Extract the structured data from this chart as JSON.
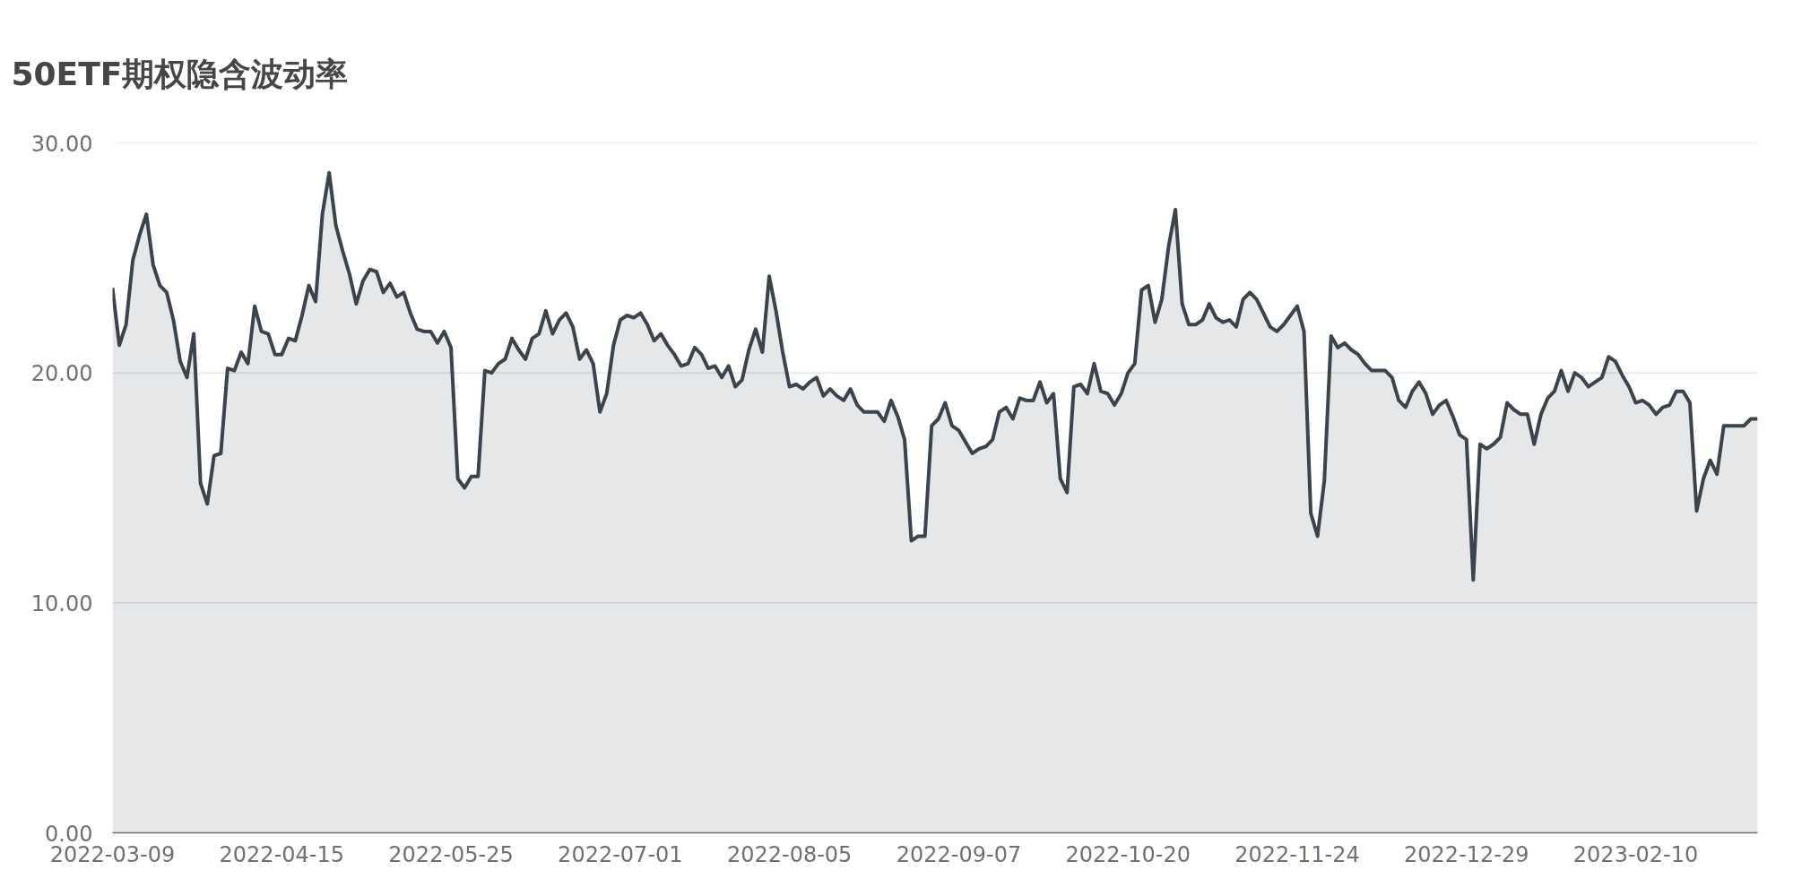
{
  "chart_data": {
    "type": "area",
    "title": "50ETF期权隐含波动率",
    "categories": [
      "2022-03-09",
      null,
      null,
      null,
      null,
      null,
      null,
      null,
      null,
      null,
      null,
      null,
      null,
      null,
      null,
      null,
      null,
      null,
      null,
      null,
      null,
      null,
      null,
      null,
      null,
      "2022-04-15",
      null,
      null,
      null,
      null,
      null,
      null,
      null,
      null,
      null,
      null,
      null,
      null,
      null,
      null,
      null,
      null,
      null,
      null,
      null,
      null,
      null,
      null,
      null,
      null,
      "2022-05-25",
      null,
      null,
      null,
      null,
      null,
      null,
      null,
      null,
      null,
      null,
      null,
      null,
      null,
      null,
      null,
      null,
      null,
      null,
      null,
      null,
      null,
      null,
      null,
      null,
      "2022-07-01",
      null,
      null,
      null,
      null,
      null,
      null,
      null,
      null,
      null,
      null,
      null,
      null,
      null,
      null,
      null,
      null,
      null,
      null,
      null,
      null,
      null,
      null,
      null,
      null,
      "2022-08-05",
      null,
      null,
      null,
      null,
      null,
      null,
      null,
      null,
      null,
      null,
      null,
      null,
      null,
      null,
      null,
      null,
      null,
      null,
      null,
      null,
      null,
      null,
      null,
      null,
      "2022-09-07",
      null,
      null,
      null,
      null,
      null,
      null,
      null,
      null,
      null,
      null,
      null,
      null,
      null,
      null,
      null,
      null,
      null,
      null,
      null,
      null,
      null,
      null,
      null,
      null,
      "2022-10-20",
      null,
      null,
      null,
      null,
      null,
      null,
      null,
      null,
      null,
      null,
      null,
      null,
      null,
      null,
      null,
      null,
      null,
      null,
      null,
      null,
      null,
      null,
      null,
      null,
      "2022-11-24",
      null,
      null,
      null,
      null,
      null,
      null,
      null,
      null,
      null,
      null,
      null,
      null,
      null,
      null,
      null,
      null,
      null,
      null,
      null,
      null,
      null,
      null,
      null,
      null,
      "2022-12-29",
      null,
      null,
      null,
      null,
      null,
      null,
      null,
      null,
      null,
      null,
      null,
      null,
      null,
      null,
      null,
      null,
      null,
      null,
      null,
      null,
      null,
      null,
      null,
      null,
      "2023-02-10",
      null,
      null,
      null,
      null,
      null,
      null,
      null,
      null,
      null,
      null,
      null,
      null,
      null,
      null,
      null,
      null,
      null,
      null
    ],
    "series": [
      {
        "color": "#3b434c",
        "values": [
          23.7,
          21.2,
          22.1,
          24.9,
          26.0,
          26.9,
          24.7,
          23.8,
          23.5,
          22.3,
          20.5,
          19.8,
          21.7,
          15.2,
          14.3,
          16.4,
          16.5,
          20.2,
          20.1,
          20.9,
          20.4,
          22.9,
          21.8,
          21.7,
          20.8,
          20.8,
          21.5,
          21.4,
          22.5,
          23.8,
          23.1,
          26.9,
          28.7,
          26.4,
          25.3,
          24.3,
          23.0,
          24.0,
          24.5,
          24.4,
          23.5,
          23.9,
          23.3,
          23.5,
          22.6,
          21.9,
          21.8,
          21.8,
          21.3,
          21.8,
          21.1,
          15.4,
          15.0,
          15.5,
          15.5,
          20.1,
          20.0,
          20.4,
          20.6,
          21.5,
          21.0,
          20.6,
          21.5,
          21.7,
          22.7,
          21.7,
          22.3,
          22.6,
          22.0,
          20.6,
          21.0,
          20.4,
          18.3,
          19.1,
          21.2,
          22.3,
          22.5,
          22.4,
          22.6,
          22.1,
          21.4,
          21.7,
          21.2,
          20.8,
          20.3,
          20.4,
          21.1,
          20.8,
          20.2,
          20.3,
          19.8,
          20.3,
          19.4,
          19.7,
          21.0,
          21.9,
          20.9,
          24.2,
          22.7,
          20.9,
          19.4,
          19.5,
          19.3,
          19.6,
          19.8,
          19.0,
          19.3,
          19.0,
          18.8,
          19.3,
          18.6,
          18.3,
          18.3,
          18.3,
          17.9,
          18.8,
          18.1,
          17.1,
          12.7,
          12.9,
          12.9,
          17.7,
          18.0,
          18.7,
          17.7,
          17.5,
          17.0,
          16.5,
          16.7,
          16.8,
          17.1,
          18.3,
          18.5,
          18.0,
          18.9,
          18.8,
          18.8,
          19.6,
          18.7,
          19.1,
          15.4,
          14.8,
          19.4,
          19.5,
          19.1,
          20.4,
          19.2,
          19.1,
          18.6,
          19.1,
          20.0,
          20.4,
          23.6,
          23.8,
          22.2,
          23.2,
          25.5,
          27.1,
          23.0,
          22.1,
          22.1,
          22.3,
          23.0,
          22.4,
          22.2,
          22.3,
          22.0,
          23.2,
          23.5,
          23.2,
          22.6,
          22.0,
          21.8,
          22.1,
          22.5,
          22.9,
          21.8,
          13.9,
          12.9,
          15.3,
          21.6,
          21.1,
          21.3,
          21.0,
          20.8,
          20.4,
          20.1,
          20.1,
          20.1,
          19.8,
          18.8,
          18.5,
          19.2,
          19.6,
          19.1,
          18.2,
          18.6,
          18.8,
          18.1,
          17.3,
          17.1,
          11.0,
          16.9,
          16.7,
          16.9,
          17.2,
          18.7,
          18.4,
          18.2,
          18.2,
          16.9,
          18.2,
          18.9,
          19.2,
          20.1,
          19.2,
          20.0,
          19.8,
          19.4,
          19.6,
          19.8,
          20.7,
          20.5,
          19.9,
          19.4,
          18.7,
          18.8,
          18.6,
          18.2,
          18.5,
          18.6,
          19.2,
          19.2,
          18.7,
          14.0,
          15.4,
          16.2,
          15.6,
          17.7,
          17.7,
          17.7,
          17.7,
          18.0,
          18.0
        ]
      }
    ],
    "ylim": [
      0,
      30
    ],
    "yticks": [
      {
        "value": 0,
        "label": "0.00"
      },
      {
        "value": 10,
        "label": "10.00"
      },
      {
        "value": 20,
        "label": "20.00"
      },
      {
        "value": 30,
        "label": "30.00"
      }
    ],
    "grid": "y"
  }
}
